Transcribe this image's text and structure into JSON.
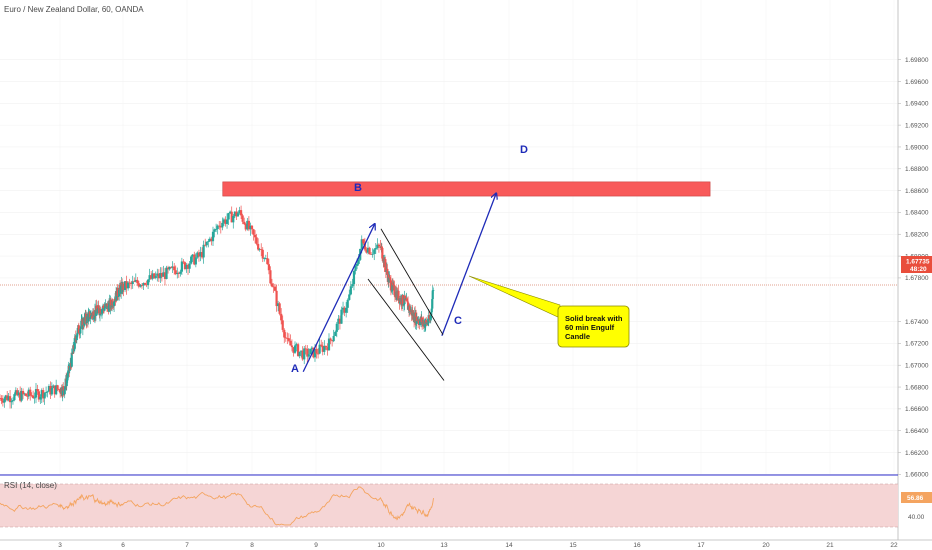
{
  "header": {
    "title": "Euro / New Zealand Dollar, 60, OANDA"
  },
  "price_axis": {
    "labels": [
      "1.69800",
      "1.69600",
      "1.69400",
      "1.69200",
      "1.69000",
      "1.68800",
      "1.68600",
      "1.68400",
      "1.68200",
      "1.68000",
      "1.67800",
      "1.67400",
      "1.67200",
      "1.67000",
      "1.66800",
      "1.66600",
      "1.66400",
      "1.66200",
      "1.66000"
    ],
    "current_price": "1.67735",
    "countdown": "48:20"
  },
  "time_axis": {
    "labels": [
      "3",
      "6",
      "7",
      "8",
      "9",
      "10",
      "13",
      "14",
      "15",
      "16",
      "17",
      "20",
      "21",
      "22"
    ]
  },
  "annotations": {
    "wave_a": "A",
    "wave_b": "B",
    "wave_c": "C",
    "wave_d": "D",
    "note_line1": "Solid break with",
    "note_line2": "60 min Engulf",
    "note_line3": "Candle"
  },
  "rsi": {
    "title": "RSI (14, close)",
    "current_value": "56.86",
    "level_label": "40.00"
  },
  "colors": {
    "up": "#26a69a",
    "down": "#ef5350",
    "resistance_zone": "#f85a5a",
    "wave_lines": "#1e2bb8",
    "channel": "#111111",
    "note_bg": "#ffff00",
    "rsi_line": "#f4a460",
    "rsi_band": "#f5d5d5",
    "price_line": "#d9826b"
  },
  "chart_data": {
    "type": "candlestick",
    "symbol": "EUR/NZD",
    "timeframe": "60",
    "ylim": [
      1.6595,
      1.6995
    ],
    "resistance_zone": [
      1.6855,
      1.6868
    ],
    "close_path": [
      [
        2.0,
        1.667
      ],
      [
        2.3,
        1.6672
      ],
      [
        2.6,
        1.6673
      ],
      [
        2.9,
        1.6678
      ],
      [
        3.2,
        1.6678
      ],
      [
        3.5,
        1.67
      ],
      [
        3.8,
        1.673
      ],
      [
        4.2,
        1.6742
      ],
      [
        4.6,
        1.6748
      ],
      [
        5.0,
        1.6752
      ],
      [
        5.4,
        1.6755
      ],
      [
        5.8,
        1.6768
      ],
      [
        6.2,
        1.6775
      ],
      [
        6.6,
        1.6782
      ],
      [
        6.9,
        1.679
      ],
      [
        7.2,
        1.68
      ],
      [
        7.5,
        1.683
      ],
      [
        7.8,
        1.684
      ],
      [
        8.0,
        1.682
      ],
      [
        8.2,
        1.68
      ],
      [
        8.4,
        1.6755
      ],
      [
        8.55,
        1.672
      ],
      [
        8.8,
        1.671
      ],
      [
        9.0,
        1.6712
      ],
      [
        9.2,
        1.672
      ],
      [
        9.5,
        1.676
      ],
      [
        9.7,
        1.6812
      ],
      [
        9.85,
        1.6805
      ],
      [
        10.0,
        1.6808
      ],
      [
        10.15,
        1.6795
      ],
      [
        10.35,
        1.678
      ],
      [
        10.55,
        1.677
      ],
      [
        10.75,
        1.6765
      ],
      [
        10.95,
        1.676
      ],
      [
        11.15,
        1.6758
      ],
      [
        11.35,
        1.6752
      ],
      [
        11.55,
        1.6745
      ],
      [
        11.75,
        1.6742
      ],
      [
        11.95,
        1.674
      ],
      [
        12.15,
        1.6738
      ],
      [
        12.35,
        1.6742
      ],
      [
        12.5,
        1.6774
      ]
    ],
    "last_price": 1.67735,
    "waves": {
      "A": [
        8.8,
        1.6694
      ],
      "B": [
        9.9,
        1.6829
      ],
      "C": [
        12.9,
        1.6727
      ],
      "D": [
        13.8,
        1.6857
      ]
    },
    "channel": {
      "upper": [
        [
          10.0,
          1.6825
        ],
        [
          12.95,
          1.6728
        ]
      ],
      "lower": [
        [
          9.8,
          1.6779
        ],
        [
          13.0,
          1.6686
        ]
      ]
    },
    "rsi": {
      "title": "RSI (14, close)",
      "last": 56.86,
      "band": [
        30,
        70
      ]
    }
  }
}
